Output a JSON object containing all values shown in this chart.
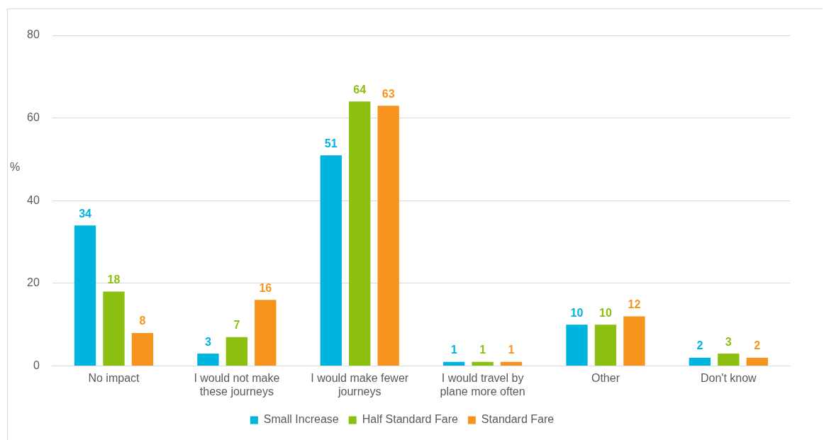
{
  "chart_data": {
    "type": "bar",
    "ylabel": "%",
    "categories": [
      "No impact",
      "I would not make these journeys",
      "I would make fewer journeys",
      "I would travel by plane more often",
      "Other",
      "Don't know"
    ],
    "series": [
      {
        "name": "Small Increase",
        "color": "#00b4e0",
        "values": [
          34,
          3,
          51,
          1,
          10,
          2
        ]
      },
      {
        "name": "Half Standard Fare",
        "color": "#8cc010",
        "values": [
          18,
          7,
          64,
          1,
          10,
          3
        ]
      },
      {
        "name": "Standard Fare",
        "color": "#f7941d",
        "values": [
          8,
          16,
          63,
          1,
          12,
          2
        ]
      }
    ],
    "ylim": [
      0,
      80
    ],
    "yticks": [
      0,
      20,
      40,
      60,
      80
    ],
    "grid": "y",
    "legend": "bottom",
    "data_labels": true
  }
}
